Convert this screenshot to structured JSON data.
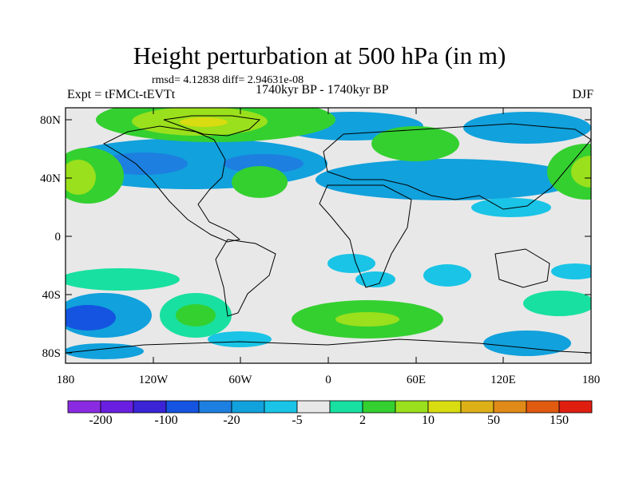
{
  "title": "Height perturbation at 500 hPa (in m)",
  "stats": "rmsd= 4.12838 diff= 2.94631e-08",
  "expt": "Expt = tFMCt-tEVTt",
  "period": "1740kyr BP - 1740kyr BP",
  "season": "DJF",
  "x_ticks": [
    "180",
    "120W",
    "60W",
    "0",
    "60E",
    "120E",
    "180"
  ],
  "y_ticks": [
    "80N",
    "40N",
    "0",
    "40S",
    "80S"
  ],
  "colorbar": {
    "colors": [
      "#8a2be2",
      "#6a1fe0",
      "#3a24d6",
      "#1454e0",
      "#1d7fe0",
      "#11a1dc",
      "#19c4e6",
      "#e8e8e8",
      "#18e0a0",
      "#34d030",
      "#9ae01c",
      "#d8dc10",
      "#ddb018",
      "#e08a18",
      "#e05a10",
      "#e01e10"
    ],
    "labels": [
      "-200",
      "-100",
      "-20",
      "-5",
      "2",
      "10",
      "50",
      "150"
    ]
  },
  "legend_colors": {
    "neutral": "#e8e8e8",
    "light_blue": "#19c4e6",
    "blue": "#11a1dc",
    "mid_blue": "#1d7fe0",
    "dark_blue": "#1454e0",
    "teal": "#18e0a0",
    "green": "#34d030",
    "yellow_green": "#9ae01c",
    "yellow": "#d8dc10"
  }
}
